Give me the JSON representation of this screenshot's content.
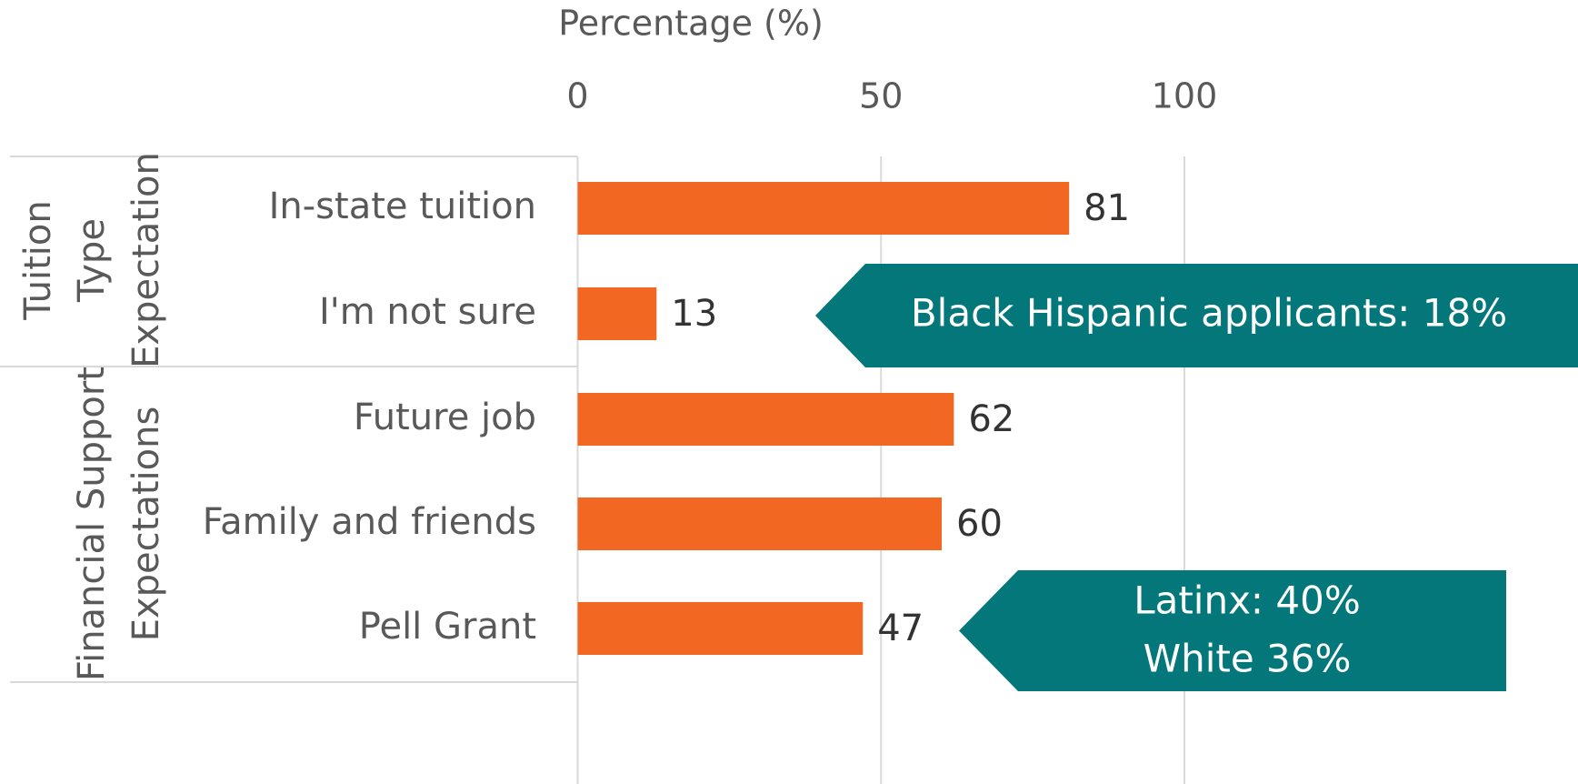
{
  "chart_data": {
    "type": "bar",
    "orientation": "horizontal",
    "x_label": "Percentage (%)",
    "categories": [
      "In-state tuition",
      "I'm not sure",
      "Future job",
      "Family and friends",
      "Pell Grant"
    ],
    "values": [
      81,
      13,
      62,
      60,
      47
    ],
    "color": "#f26722",
    "xlim": [
      0,
      165
    ],
    "xticks": [
      0,
      50,
      100
    ],
    "grid": true,
    "groups": [
      {
        "lines": [
          "Tuition",
          "Type",
          "Expectation"
        ]
      },
      {
        "lines": [
          "Financial Support",
          "Expectations"
        ]
      }
    ],
    "annotations": [
      {
        "lines": [
          "Black Hispanic applicants: 18%"
        ],
        "color": "#03777a"
      },
      {
        "lines": [
          "Latinx: 40%",
          "White 36%"
        ],
        "color": "#03777a"
      }
    ]
  }
}
